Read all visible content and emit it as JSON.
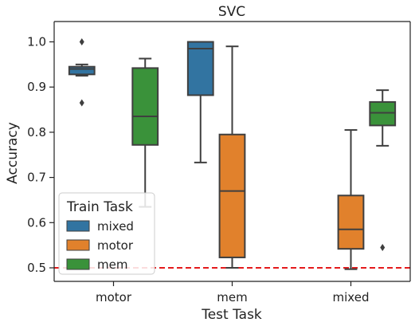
{
  "chart_data": {
    "type": "box",
    "title": "SVC",
    "xlabel": "Test Task",
    "ylabel": "Accuracy",
    "ylim": [
      0.47,
      1.045
    ],
    "yticks": [
      0.5,
      0.6,
      0.7,
      0.8,
      0.9,
      1.0
    ],
    "ytick_labels": [
      "0.5",
      "0.6",
      "0.7",
      "0.8",
      "0.9",
      "1.0"
    ],
    "categories": [
      "motor",
      "mem",
      "mixed"
    ],
    "reference_line": {
      "y": 0.5,
      "color": "#e41a1c",
      "style": "dashed"
    },
    "legend": {
      "title": "Train Task",
      "position": "lower-left"
    },
    "series": [
      {
        "name": "mixed",
        "color": "#3274a1",
        "boxes": [
          {
            "category": "motor",
            "whisker_low": 0.925,
            "q1": 0.928,
            "median": 0.94,
            "q3": 0.945,
            "whisker_high": 0.95,
            "outliers": [
              1.0,
              0.865
            ]
          },
          {
            "category": "mem",
            "whisker_low": 0.733,
            "q1": 0.882,
            "median": 0.985,
            "q3": 1.0,
            "whisker_high": 1.0,
            "outliers": []
          }
        ]
      },
      {
        "name": "motor",
        "color": "#e1812c",
        "boxes": [
          {
            "category": "mem",
            "whisker_low": 0.5,
            "q1": 0.523,
            "median": 0.67,
            "q3": 0.795,
            "whisker_high": 0.99,
            "outliers": []
          },
          {
            "category": "mixed",
            "whisker_low": 0.497,
            "q1": 0.542,
            "median": 0.585,
            "q3": 0.66,
            "whisker_high": 0.805,
            "outliers": []
          }
        ]
      },
      {
        "name": "mem",
        "color": "#3a923a",
        "boxes": [
          {
            "category": "motor",
            "whisker_low": 0.635,
            "q1": 0.772,
            "median": 0.835,
            "q3": 0.942,
            "whisker_high": 0.963,
            "outliers": []
          },
          {
            "category": "mixed",
            "whisker_low": 0.77,
            "q1": 0.815,
            "median": 0.843,
            "q3": 0.867,
            "whisker_high": 0.893,
            "outliers": [
              0.545
            ]
          }
        ]
      }
    ]
  }
}
